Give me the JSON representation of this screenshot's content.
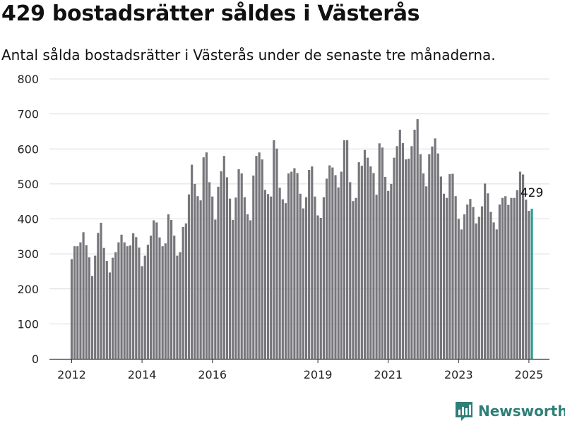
{
  "header": {
    "title": "429 bostadsrätter såldes i Västerås",
    "subtitle": "Antal sålda bostadsrätter i Västerås under de senaste tre månaderna."
  },
  "brand": {
    "name": "Newsworthy",
    "color": "#2e7f77"
  },
  "chart_data": {
    "type": "bar",
    "title": "",
    "xlabel": "",
    "ylabel": "",
    "ylim": [
      0,
      800
    ],
    "yticks": [
      "0",
      "100",
      "200",
      "300",
      "400",
      "500",
      "600",
      "700",
      "800"
    ],
    "xticks": [
      {
        "label": "2012",
        "date": "2012-01"
      },
      {
        "label": "2014",
        "date": "2014-01"
      },
      {
        "label": "2016",
        "date": "2016-01"
      },
      {
        "label": "2019",
        "date": "2019-01"
      },
      {
        "label": "2021",
        "date": "2021-01"
      },
      {
        "label": "2023",
        "date": "2023-01"
      },
      {
        "label": "2025",
        "date": "2025-01"
      }
    ],
    "start": "2012-01",
    "grid": true,
    "bar_color": "#77767b",
    "highlight_color": "#2e9a94",
    "last_label": "429",
    "values": [
      285,
      322,
      322,
      333,
      362,
      325,
      290,
      237,
      295,
      360,
      389,
      317,
      280,
      247,
      289,
      305,
      333,
      355,
      333,
      322,
      324,
      359,
      348,
      318,
      265,
      295,
      326,
      352,
      396,
      390,
      347,
      322,
      330,
      413,
      397,
      352,
      295,
      305,
      377,
      387,
      470,
      555,
      500,
      465,
      453,
      576,
      590,
      505,
      464,
      398,
      492,
      536,
      580,
      519,
      458,
      397,
      461,
      542,
      530,
      462,
      413,
      396,
      524,
      580,
      590,
      570,
      483,
      471,
      464,
      625,
      601,
      489,
      456,
      445,
      530,
      535,
      545,
      531,
      472,
      430,
      462,
      540,
      550,
      464,
      410,
      403,
      462,
      515,
      553,
      547,
      525,
      490,
      535,
      625,
      625,
      505,
      451,
      460,
      562,
      552,
      597,
      575,
      550,
      531,
      469,
      616,
      604,
      520,
      480,
      500,
      575,
      608,
      655,
      617,
      570,
      572,
      608,
      655,
      685,
      585,
      530,
      493,
      585,
      607,
      630,
      587,
      521,
      472,
      460,
      528,
      529,
      465,
      400,
      370,
      413,
      441,
      457,
      434,
      387,
      406,
      436,
      501,
      473,
      420,
      390,
      370,
      441,
      460,
      465,
      440,
      460,
      460,
      482,
      535,
      527,
      455,
      423,
      429
    ]
  }
}
